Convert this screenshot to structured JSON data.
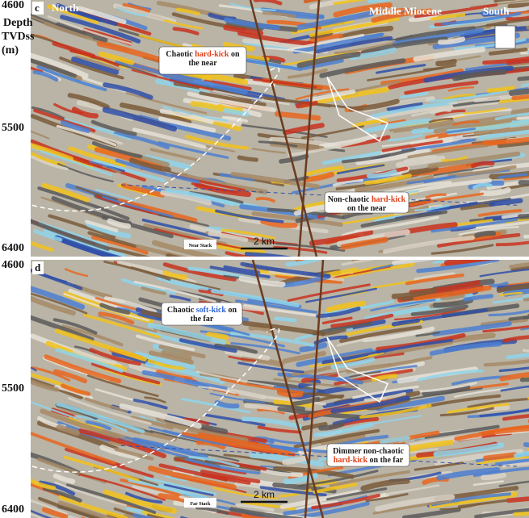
{
  "panels": [
    {
      "label": "c",
      "north": "North",
      "epoch": "Middle Miocene",
      "south": "South",
      "depth_labels": [
        "4600",
        "5500",
        "6400"
      ],
      "axis_title": [
        "Depth",
        "TVDss",
        "(m)"
      ],
      "annotations": [
        {
          "lines": [
            [
              "Chaotic ",
              {
                "text": "hard-kick",
                "color": "#e0401a"
              },
              " on"
            ],
            [
              "the near"
            ]
          ]
        },
        {
          "lines": [
            [
              "Non-chaotic ",
              {
                "text": "hard-kick",
                "color": "#e0401a"
              }
            ],
            [
              "on the near"
            ]
          ]
        }
      ],
      "stack": "Near Stack",
      "scale": "2 km"
    },
    {
      "label": "d",
      "depth_labels": [
        "4600",
        "5500",
        "6400"
      ],
      "annotations": [
        {
          "lines": [
            [
              "Chaotic ",
              {
                "text": "soft-kick",
                "color": "#2f66d6"
              },
              " on"
            ],
            [
              "the far"
            ]
          ]
        },
        {
          "lines": [
            [
              "Dimmer non-chaotic"
            ],
            [
              {
                "text": "hard-kick",
                "color": "#e0401a"
              },
              " on the far"
            ]
          ]
        }
      ],
      "stack": "Far Stack",
      "scale": "2 km"
    }
  ]
}
